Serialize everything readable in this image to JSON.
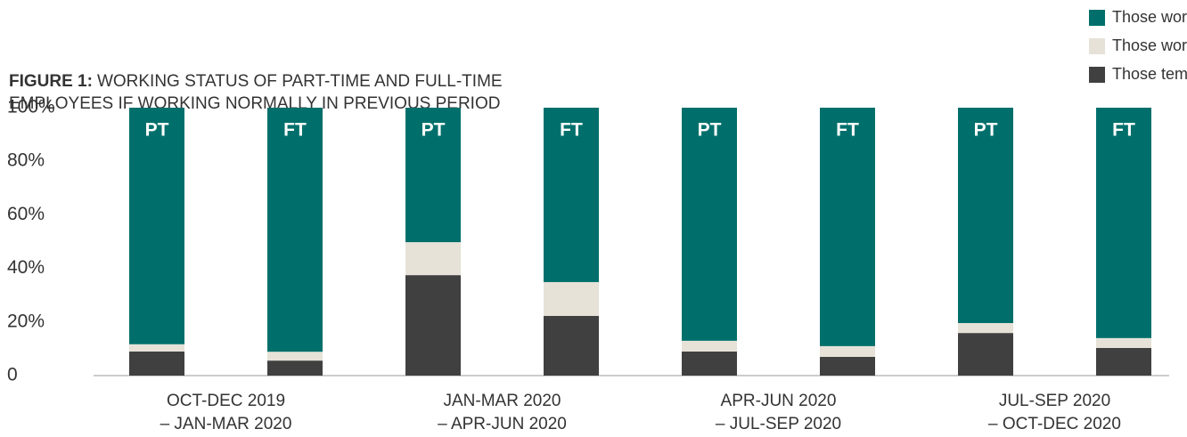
{
  "chart_data": {
    "type": "stacked-bar",
    "title": "FIGURE 1:",
    "subtitle": [
      "WORKING STATUS OF PART-TIME AND FULL-TIME",
      "EMPLOYEES IF WORKING NORMALLY IN PREVIOUS PERIOD"
    ],
    "categories": [
      "PT",
      "FT",
      "PT",
      "FT",
      "PT",
      "FT",
      "PT",
      "FT"
    ],
    "groups": [
      [
        "OCT-DEC 2019",
        "– JAN-MAR 2020"
      ],
      [
        "JAN-MAR 2020",
        "– APR-JUN 2020"
      ],
      [
        "APR-JUN 2020",
        "– JUL-SEP 2020"
      ],
      [
        "JUL-SEP 2020",
        "– OCT-DEC 2020"
      ]
    ],
    "series": [
      {
        "name": "Those working normaly",
        "color": "#006f6b",
        "values": [
          88.3,
          91.1,
          50.2,
          65.1,
          87.0,
          89.0,
          80.4,
          86.0
        ]
      },
      {
        "name": "Those working reduced hours",
        "color": "#e6e2d8",
        "values": [
          2.7,
          3.3,
          12.3,
          12.6,
          4.0,
          4.0,
          3.7,
          3.7
        ]
      },
      {
        "name": "Those temporarily away from work",
        "color": "#404040",
        "values": [
          9.0,
          5.6,
          37.5,
          22.3,
          9.0,
          7.0,
          15.9,
          10.3
        ]
      }
    ],
    "ylim": [
      0,
      100
    ],
    "yticks": [
      0,
      {
        "value": 20,
        "label": "20%"
      },
      {
        "value": 40,
        "label": "40%"
      },
      {
        "value": 60,
        "label": "60%"
      },
      {
        "value": 80,
        "label": "80%"
      },
      {
        "value": 100,
        "label": "100%"
      }
    ],
    "legend": "top-right"
  }
}
